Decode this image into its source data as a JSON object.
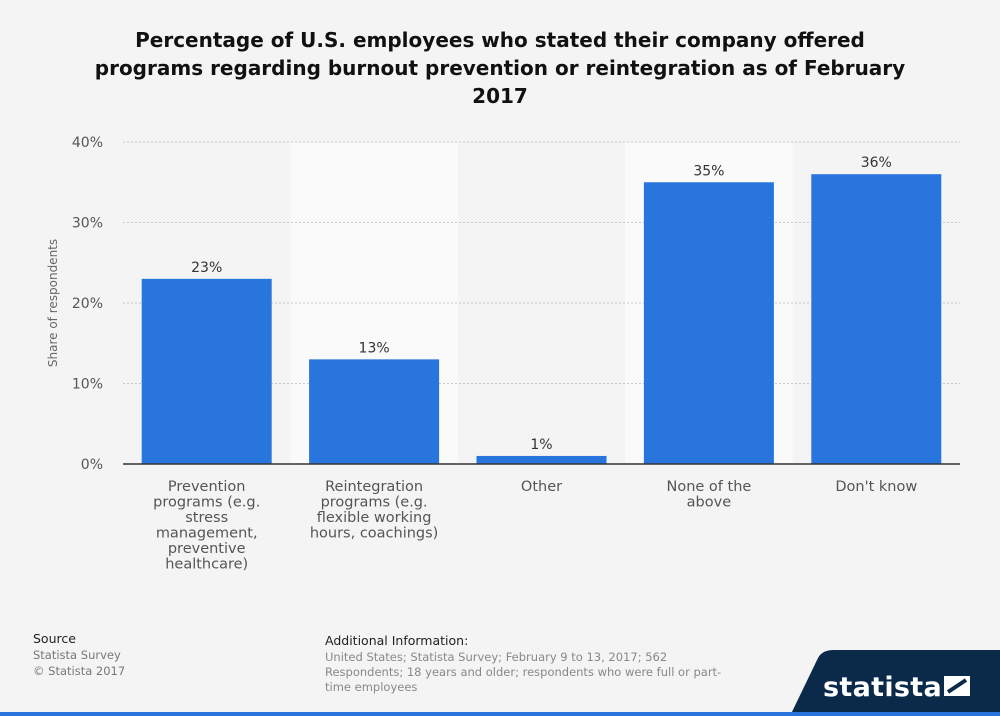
{
  "title": "Percentage of U.S. employees who stated their company offered programs regarding burnout prevention or reintegration as of February 2017",
  "chart_data": {
    "type": "bar",
    "categories": [
      [
        "Prevention",
        "programs (e.g.",
        "stress",
        "management,",
        "preventive",
        "healthcare)"
      ],
      [
        "Reintegration",
        "programs (e.g.",
        "flexible working",
        "hours, coachings)"
      ],
      [
        "Other"
      ],
      [
        "None of the",
        "above"
      ],
      [
        "Don't know"
      ]
    ],
    "values": [
      23,
      13,
      1,
      35,
      36
    ],
    "value_labels": [
      "23%",
      "13%",
      "1%",
      "35%",
      "36%"
    ],
    "ylabel": "Share of respondents",
    "ylim": [
      0,
      40
    ],
    "yticks": [
      0,
      10,
      20,
      30,
      40
    ],
    "ytick_labels": [
      "0%",
      "10%",
      "20%",
      "30%",
      "40%"
    ],
    "grid": true,
    "bar_color": "#2876dd"
  },
  "source": {
    "header": "Source",
    "lines": [
      "Statista Survey",
      "© Statista 2017"
    ]
  },
  "additional_info": {
    "header": "Additional Information:",
    "text": "United States; Statista Survey; February 9 to 13, 2017; 562 Respondents; 18 years and older; respondents who were full or part-time employees"
  },
  "brand": {
    "name": "statista",
    "color": "#0b2a4a",
    "accent": "#2876dd"
  }
}
